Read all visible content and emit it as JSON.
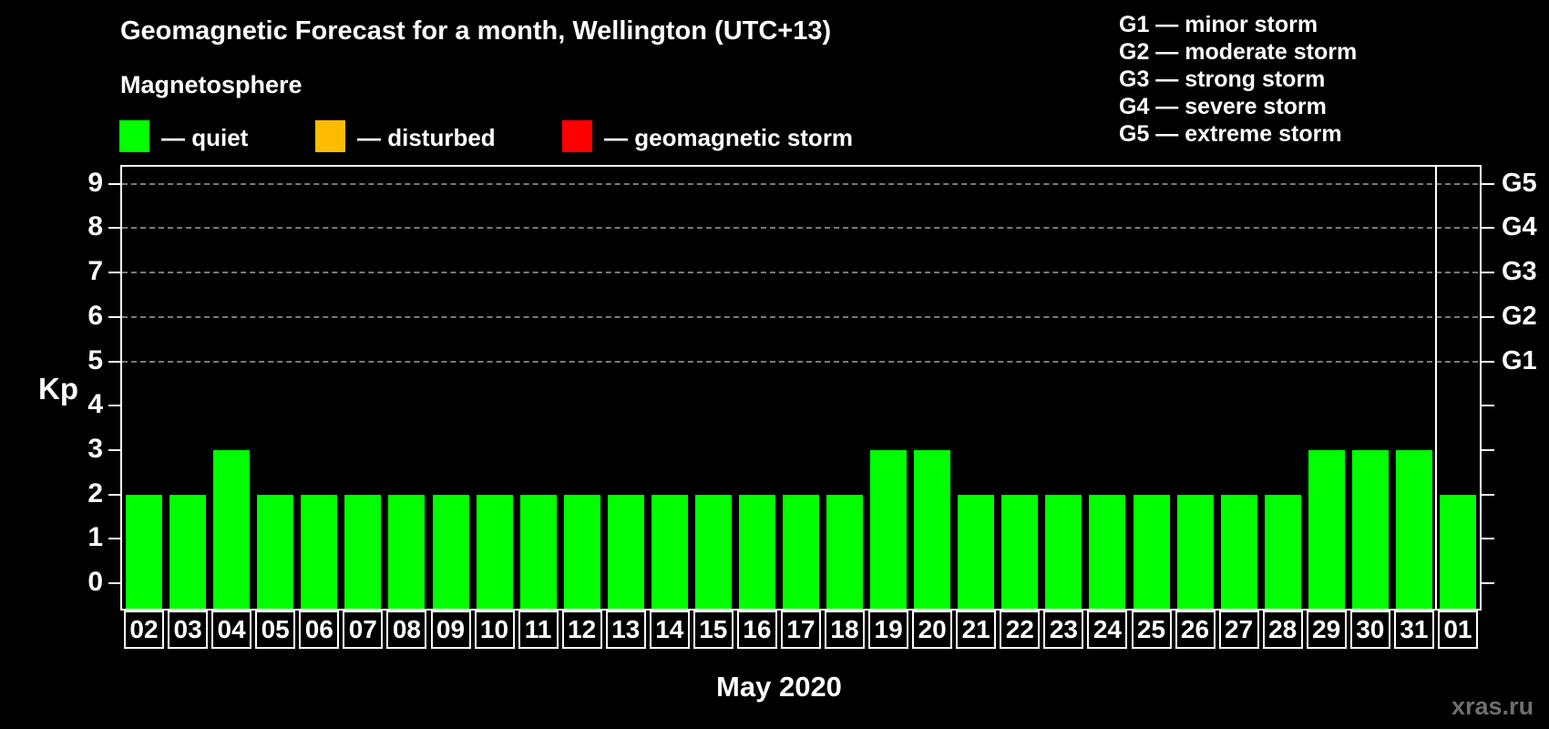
{
  "header": {
    "title": "Geomagnetic Forecast for a month, Wellington (UTC+13)",
    "subtitle": "Magnetosphere"
  },
  "legend": {
    "items": [
      {
        "name": "quiet",
        "label": "— quiet",
        "color": "#00ff00"
      },
      {
        "name": "disturbed",
        "label": "— disturbed",
        "color": "#ffbb00"
      },
      {
        "name": "geomagnetic-storm",
        "label": "— geomagnetic storm",
        "color": "#ff0000"
      }
    ]
  },
  "g_legend": {
    "items": [
      "G1 — minor storm",
      "G2 — moderate storm",
      "G3 — strong storm",
      "G4 — severe storm",
      "G5 — extreme storm"
    ]
  },
  "axis": {
    "kp_label": "Kp",
    "left_ticks": [
      "0",
      "1",
      "2",
      "3",
      "4",
      "5",
      "6",
      "7",
      "8",
      "9"
    ],
    "right_storm_labels": [
      "G1",
      "G2",
      "G3",
      "G4",
      "G5"
    ]
  },
  "chart_data": {
    "type": "bar",
    "title": "Geomagnetic Forecast for a month, Wellington (UTC+13)",
    "categories": [
      "02",
      "03",
      "04",
      "05",
      "06",
      "07",
      "08",
      "09",
      "10",
      "11",
      "12",
      "13",
      "14",
      "15",
      "16",
      "17",
      "18",
      "19",
      "20",
      "21",
      "22",
      "23",
      "24",
      "25",
      "26",
      "27",
      "28",
      "29",
      "30",
      "31",
      "01"
    ],
    "values": [
      2,
      2,
      3,
      2,
      2,
      2,
      2,
      2,
      2,
      2,
      2,
      2,
      2,
      2,
      2,
      2,
      2,
      3,
      3,
      2,
      2,
      2,
      2,
      2,
      2,
      2,
      2,
      3,
      3,
      3,
      2
    ],
    "series_color": "#00ff00",
    "xlabel": "May 2020",
    "ylabel": "Kp",
    "ylim": [
      -0.6,
      9.4
    ],
    "gridlines_at": [
      5,
      6,
      7,
      8,
      9
    ],
    "right_axis_labels_at": {
      "5": "G1",
      "6": "G2",
      "7": "G3",
      "8": "G4",
      "9": "G5"
    },
    "month_separator_before_index": 30,
    "legend_position": "top"
  },
  "watermark": "xras.ru",
  "colors": {
    "background": "#000000",
    "quiet": "#00ff00",
    "disturbed": "#ffbb00",
    "storm": "#ff0000",
    "grid": "#8f8f8f",
    "axis": "#ffffff",
    "watermark": "#6f6f6f"
  }
}
